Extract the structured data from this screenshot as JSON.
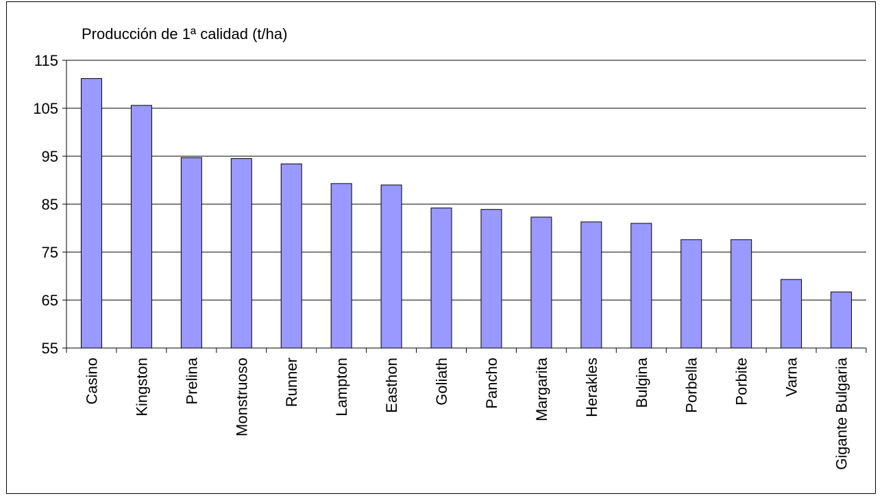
{
  "chart_data": {
    "type": "bar",
    "title": "Producción de 1ª calidad (t/ha)",
    "xlabel": "",
    "ylabel": "",
    "categories": [
      "Casino",
      "Kingston",
      "Prelina",
      "Monstruoso",
      "Runner",
      "Lampton",
      "Easthon",
      "Goliath",
      "Pancho",
      "Margarita",
      "Herakles",
      "Bulgina",
      "Porbella",
      "Porbite",
      "Varna",
      "Gigante Bulgaria"
    ],
    "values": [
      111.2,
      105.6,
      94.7,
      94.5,
      93.4,
      89.3,
      89.0,
      84.2,
      83.9,
      82.3,
      81.3,
      81.0,
      77.6,
      77.6,
      69.3,
      66.7
    ],
    "ylim": [
      55,
      115
    ],
    "yticks": [
      55,
      65,
      75,
      85,
      95,
      105,
      115
    ],
    "grid": true,
    "legend": "none",
    "bar_color": "#9999ff",
    "bar_edge_color": "#000000"
  }
}
